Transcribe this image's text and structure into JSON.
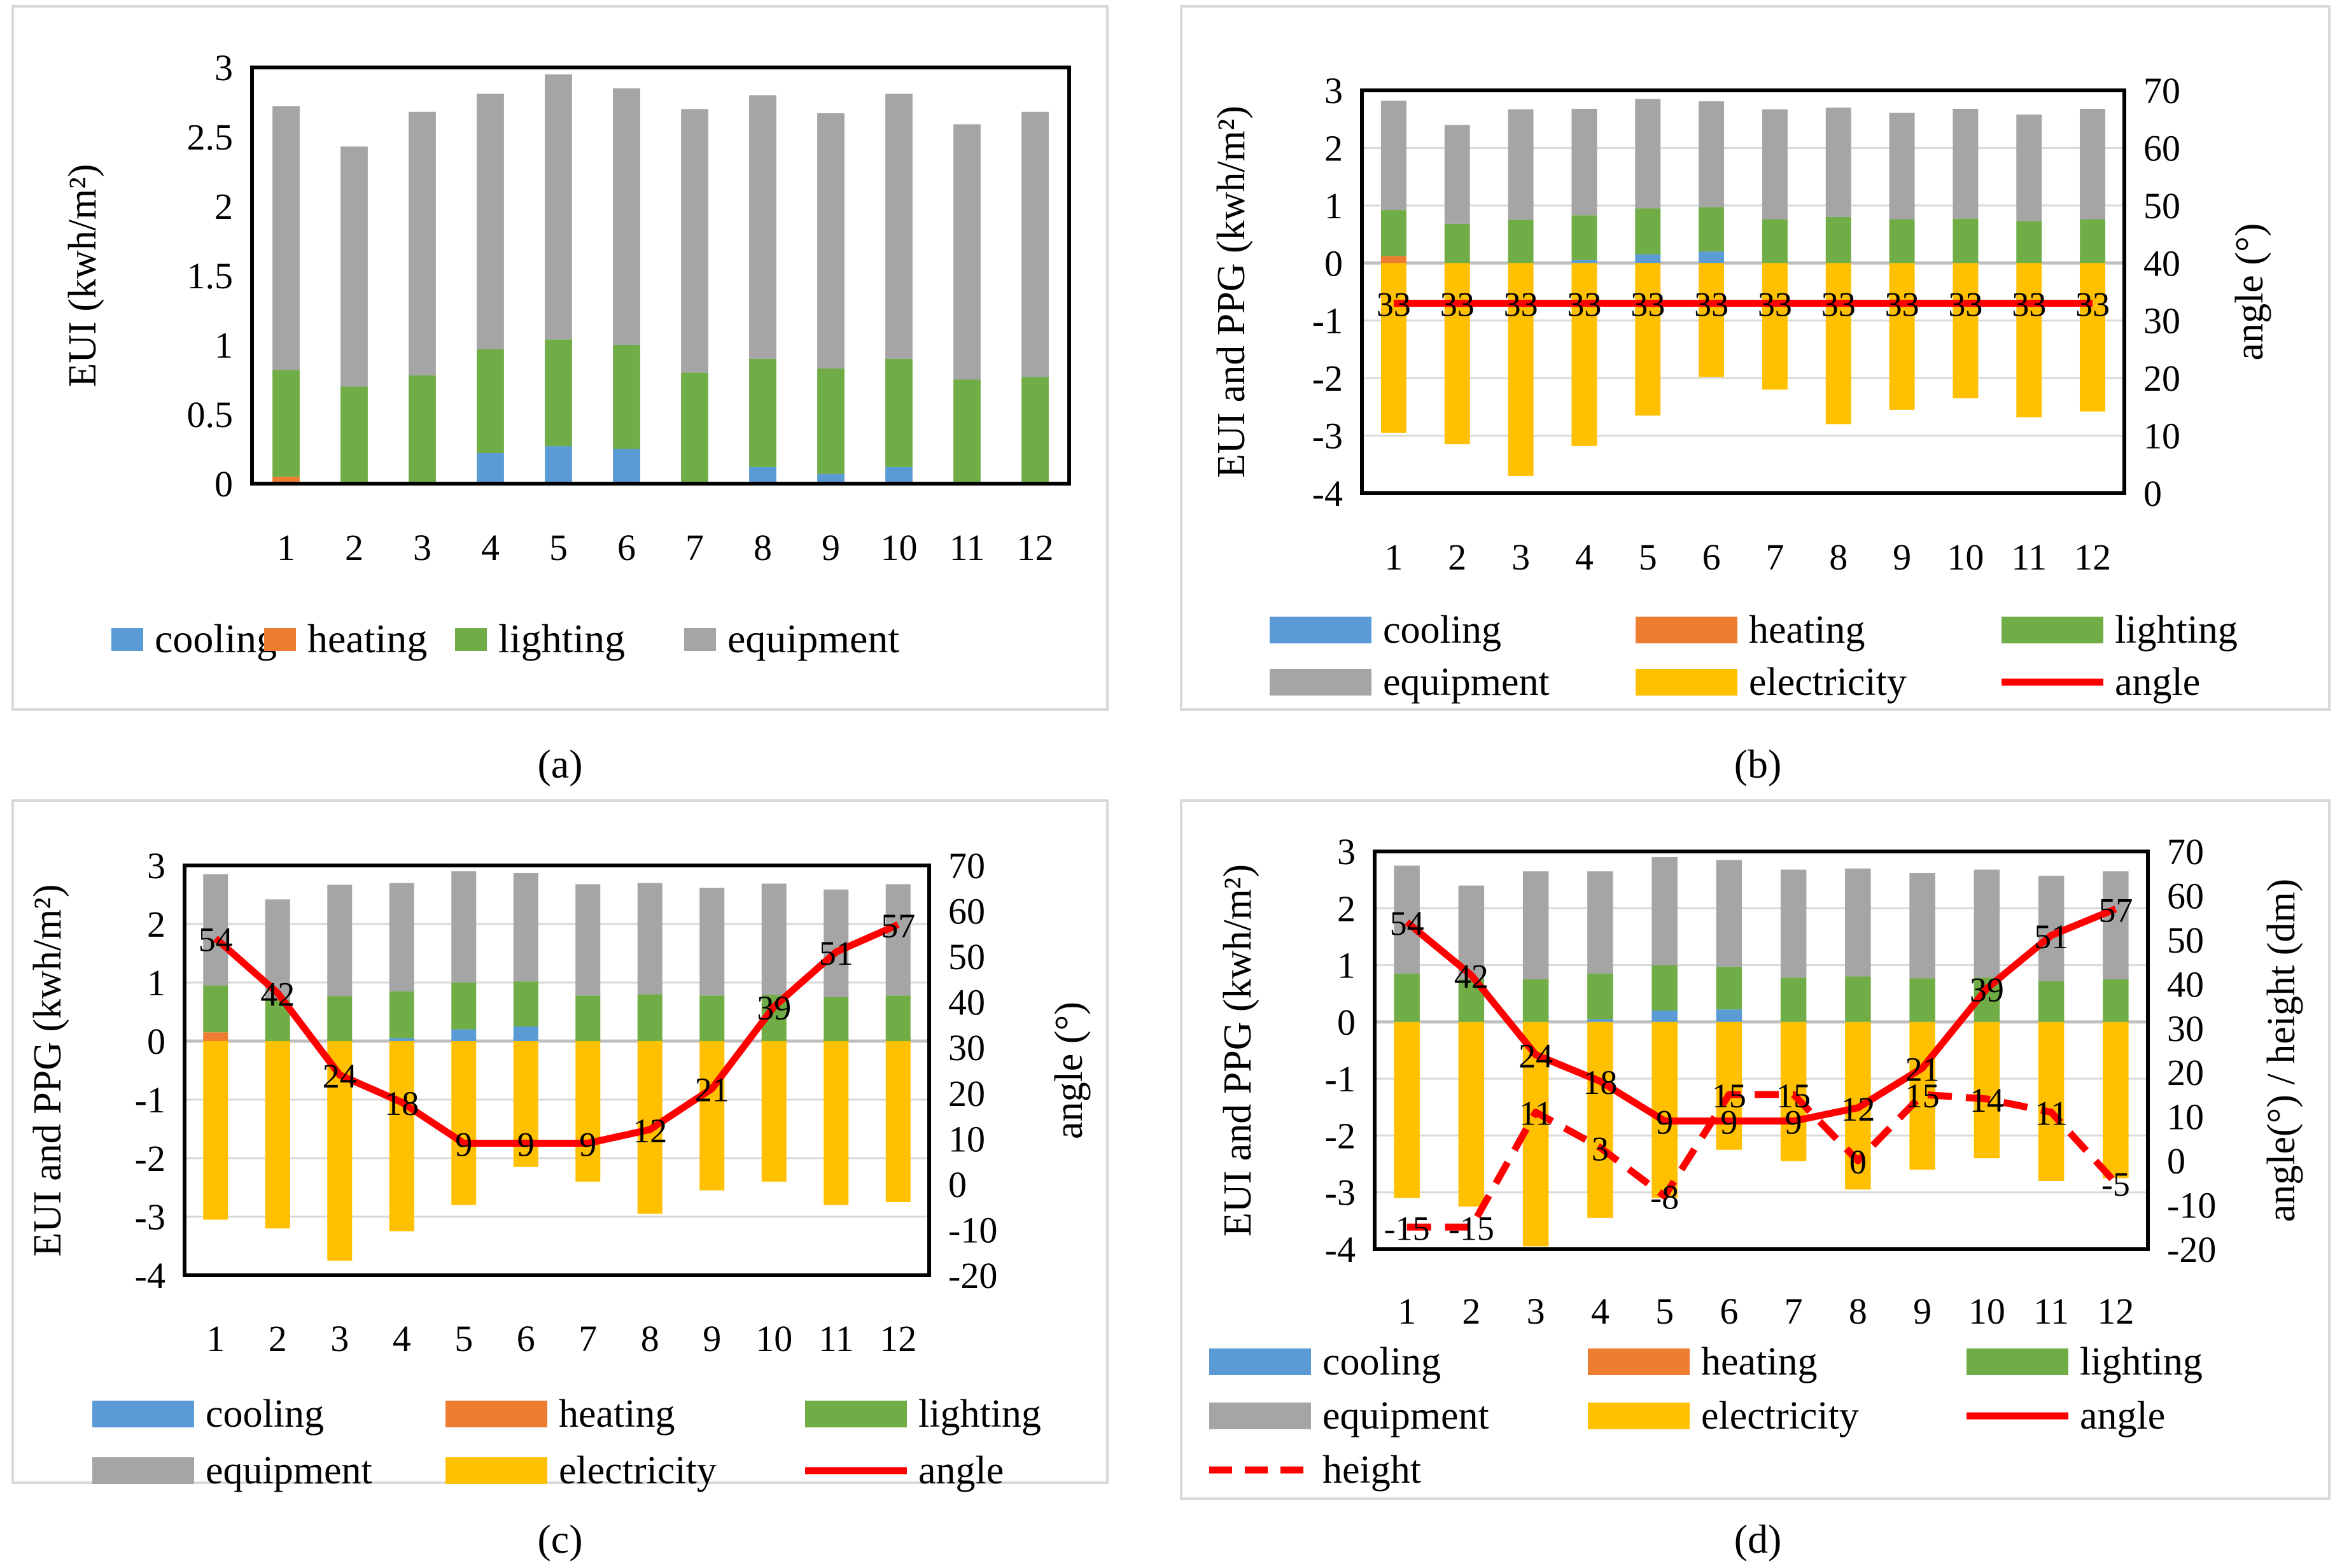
{
  "colors": {
    "cooling": "#5B9BD5",
    "heating": "#ED7D31",
    "lighting": "#70AD47",
    "equipment": "#A5A5A5",
    "electricity": "#FFC000",
    "angle": "#FF0000",
    "height": "#FF0000",
    "gridline": "#D9D9D9",
    "zeroline": "#BFBFBF",
    "frame": "#000000",
    "panel_border": "#D9D9D9"
  },
  "captions": [
    "(a)",
    "(b)",
    "(c)",
    "(d)"
  ],
  "chart_data": [
    {
      "id": "a",
      "type": "bar",
      "stacked": true,
      "categories": [
        "1",
        "2",
        "3",
        "4",
        "5",
        "6",
        "7",
        "8",
        "9",
        "10",
        "11",
        "12"
      ],
      "ylabel": "EUI (kwh/m²)",
      "ylim": [
        0,
        3
      ],
      "yticks": [
        "0",
        "0.5",
        "1",
        "1.5",
        "2",
        "2.5",
        "3"
      ],
      "grid": false,
      "legend_position": "bottom",
      "series": [
        {
          "name": "cooling",
          "values": [
            0,
            0,
            0,
            0.22,
            0.27,
            0.25,
            0,
            0.12,
            0.07,
            0.12,
            0,
            0
          ]
        },
        {
          "name": "heating",
          "values": [
            0.05,
            0,
            0,
            0,
            0,
            0,
            0,
            0,
            0,
            0,
            0,
            0
          ]
        },
        {
          "name": "lighting",
          "values": [
            0.77,
            0.7,
            0.78,
            0.75,
            0.77,
            0.75,
            0.8,
            0.78,
            0.76,
            0.78,
            0.75,
            0.77
          ]
        },
        {
          "name": "equipment",
          "values": [
            1.9,
            1.73,
            1.9,
            1.84,
            1.91,
            1.85,
            1.9,
            1.9,
            1.84,
            1.91,
            1.84,
            1.91
          ]
        }
      ]
    },
    {
      "id": "b",
      "type": "bar",
      "stacked": true,
      "categories": [
        "1",
        "2",
        "3",
        "4",
        "5",
        "6",
        "7",
        "8",
        "9",
        "10",
        "11",
        "12"
      ],
      "ylabel": "EUI and PPG   (kwh/m²)",
      "ylim": [
        -4,
        3
      ],
      "yticks": [
        "-4",
        "-3",
        "-2",
        "-1",
        "0",
        "1",
        "2",
        "3"
      ],
      "y2label": "angle (°)",
      "y2lim": [
        0,
        70
      ],
      "y2ticks": [
        "0",
        "10",
        "20",
        "30",
        "40",
        "50",
        "60",
        "70"
      ],
      "grid": true,
      "legend_position": "bottom",
      "series": [
        {
          "name": "cooling",
          "values": [
            0,
            0,
            0,
            0.05,
            0.15,
            0.2,
            0,
            0,
            0,
            0,
            0,
            0
          ]
        },
        {
          "name": "heating",
          "values": [
            0.12,
            0,
            0,
            0,
            0,
            0,
            0,
            0,
            0,
            0,
            0,
            0
          ]
        },
        {
          "name": "lighting",
          "values": [
            0.8,
            0.68,
            0.75,
            0.78,
            0.8,
            0.77,
            0.76,
            0.8,
            0.76,
            0.77,
            0.73,
            0.76
          ]
        },
        {
          "name": "equipment",
          "values": [
            1.9,
            1.72,
            1.92,
            1.85,
            1.9,
            1.84,
            1.91,
            1.9,
            1.85,
            1.91,
            1.85,
            1.92
          ]
        },
        {
          "name": "electricity",
          "values": [
            -2.95,
            -3.15,
            -3.7,
            -3.18,
            -2.65,
            -1.98,
            -2.2,
            -2.8,
            -2.55,
            -2.35,
            -2.68,
            -2.58
          ]
        }
      ],
      "lines": [
        {
          "name": "angle",
          "axis": "y2",
          "dashed": false,
          "values": [
            33,
            33,
            33,
            33,
            33,
            33,
            33,
            33,
            33,
            33,
            33,
            33
          ],
          "labels": [
            "33",
            "33",
            "33",
            "33",
            "33",
            "33",
            "33",
            "33",
            "33",
            "33",
            "33",
            "33"
          ]
        }
      ]
    },
    {
      "id": "c",
      "type": "bar",
      "stacked": true,
      "categories": [
        "1",
        "2",
        "3",
        "4",
        "5",
        "6",
        "7",
        "8",
        "9",
        "10",
        "11",
        "12"
      ],
      "ylabel": "EUI and PPG   (kwh/m²)",
      "ylim": [
        -4,
        3
      ],
      "yticks": [
        "-4",
        "-3",
        "-2",
        "-1",
        "0",
        "1",
        "2",
        "3"
      ],
      "y2label": "angle (°)",
      "y2lim": [
        -20,
        70
      ],
      "y2ticks": [
        "-20",
        "-10",
        "0",
        "10",
        "20",
        "30",
        "40",
        "50",
        "60",
        "70"
      ],
      "grid": true,
      "legend_position": "bottom",
      "series": [
        {
          "name": "cooling",
          "values": [
            0,
            0,
            0,
            0.05,
            0.2,
            0.25,
            0,
            0,
            0,
            0,
            0,
            0
          ]
        },
        {
          "name": "heating",
          "values": [
            0.15,
            0,
            0,
            0,
            0,
            0,
            0,
            0,
            0,
            0,
            0,
            0
          ]
        },
        {
          "name": "lighting",
          "values": [
            0.8,
            0.7,
            0.77,
            0.8,
            0.8,
            0.77,
            0.78,
            0.8,
            0.78,
            0.79,
            0.75,
            0.78
          ]
        },
        {
          "name": "equipment",
          "values": [
            1.9,
            1.72,
            1.9,
            1.85,
            1.9,
            1.85,
            1.9,
            1.9,
            1.84,
            1.9,
            1.84,
            1.9
          ]
        },
        {
          "name": "electricity",
          "values": [
            -3.05,
            -3.2,
            -3.75,
            -3.25,
            -2.8,
            -2.15,
            -2.4,
            -2.95,
            -2.55,
            -2.4,
            -2.8,
            -2.75
          ]
        }
      ],
      "lines": [
        {
          "name": "angle",
          "axis": "y2",
          "dashed": false,
          "values": [
            54,
            42,
            24,
            18,
            9,
            9,
            9,
            12,
            21,
            39,
            51,
            57
          ],
          "labels": [
            "54",
            "42",
            "24",
            "18",
            "9",
            "9",
            "9",
            "12",
            "21",
            "39",
            "51",
            "57"
          ]
        }
      ]
    },
    {
      "id": "d",
      "type": "bar",
      "stacked": true,
      "categories": [
        "1",
        "2",
        "3",
        "4",
        "5",
        "6",
        "7",
        "8",
        "9",
        "10",
        "11",
        "12"
      ],
      "ylabel": "EUI and PPG   (kwh/m²)",
      "ylim": [
        -4,
        3
      ],
      "yticks": [
        "-4",
        "-3",
        "-2",
        "-1",
        "0",
        "1",
        "2",
        "3"
      ],
      "y2label": "angle(°) / height (dm)",
      "y2lim": [
        -20,
        70
      ],
      "y2ticks": [
        "-20",
        "-10",
        "0",
        "10",
        "20",
        "30",
        "40",
        "50",
        "60",
        "70"
      ],
      "grid": true,
      "legend_position": "bottom",
      "series": [
        {
          "name": "cooling",
          "values": [
            0,
            0,
            0,
            0.05,
            0.2,
            0.22,
            0,
            0,
            0,
            0,
            0,
            0
          ]
        },
        {
          "name": "heating",
          "values": [
            0,
            0,
            0,
            0,
            0,
            0,
            0,
            0,
            0,
            0,
            0,
            0
          ]
        },
        {
          "name": "lighting",
          "values": [
            0.85,
            0.75,
            0.75,
            0.8,
            0.8,
            0.75,
            0.78,
            0.8,
            0.77,
            0.78,
            0.72,
            0.75
          ]
        },
        {
          "name": "equipment",
          "values": [
            1.9,
            1.65,
            1.9,
            1.8,
            1.9,
            1.88,
            1.9,
            1.9,
            1.85,
            1.9,
            1.85,
            1.9
          ]
        },
        {
          "name": "electricity",
          "values": [
            -3.1,
            -3.25,
            -3.95,
            -3.45,
            -3.1,
            -2.25,
            -2.45,
            -2.95,
            -2.6,
            -2.4,
            -2.8,
            -2.75
          ]
        }
      ],
      "lines": [
        {
          "name": "angle",
          "axis": "y2",
          "dashed": false,
          "values": [
            54,
            42,
            24,
            18,
            9,
            9,
            9,
            12,
            21,
            39,
            51,
            57
          ],
          "labels": [
            "54",
            "42",
            "24",
            "18",
            "9",
            "9",
            "9",
            "12",
            "21",
            "39",
            "51",
            "57"
          ]
        },
        {
          "name": "height",
          "axis": "y2",
          "dashed": true,
          "values": [
            -15,
            -15,
            11,
            3,
            -8,
            15,
            15,
            0,
            15,
            14,
            11,
            -5
          ],
          "labels": [
            "-15",
            "-15",
            "11",
            "3",
            "-8",
            "15",
            "15",
            "0",
            "15",
            "14",
            "11",
            "-5"
          ]
        }
      ]
    }
  ],
  "legends": {
    "a": [
      {
        "key": "cooling",
        "label": "cooling",
        "kind": "box"
      },
      {
        "key": "heating",
        "label": "heating",
        "kind": "box"
      },
      {
        "key": "lighting",
        "label": "lighting",
        "kind": "box"
      },
      {
        "key": "equipment",
        "label": "equipment",
        "kind": "box"
      }
    ],
    "b": [
      {
        "key": "cooling",
        "label": "cooling",
        "kind": "box"
      },
      {
        "key": "heating",
        "label": "heating",
        "kind": "box"
      },
      {
        "key": "lighting",
        "label": "lighting",
        "kind": "box"
      },
      {
        "key": "equipment",
        "label": "equipment",
        "kind": "box"
      },
      {
        "key": "electricity",
        "label": "electricity",
        "kind": "box"
      },
      {
        "key": "angle",
        "label": "angle",
        "kind": "line"
      }
    ],
    "c": [
      {
        "key": "cooling",
        "label": "cooling",
        "kind": "box"
      },
      {
        "key": "heating",
        "label": "heating",
        "kind": "box"
      },
      {
        "key": "lighting",
        "label": "lighting",
        "kind": "box"
      },
      {
        "key": "equipment",
        "label": "equipment",
        "kind": "box"
      },
      {
        "key": "electricity",
        "label": "electricity",
        "kind": "box"
      },
      {
        "key": "angle",
        "label": "angle",
        "kind": "line"
      }
    ],
    "d": [
      {
        "key": "cooling",
        "label": "cooling",
        "kind": "box"
      },
      {
        "key": "heating",
        "label": "heating",
        "kind": "box"
      },
      {
        "key": "lighting",
        "label": "lighting",
        "kind": "box"
      },
      {
        "key": "equipment",
        "label": "equipment",
        "kind": "box"
      },
      {
        "key": "electricity",
        "label": "electricity",
        "kind": "box"
      },
      {
        "key": "angle",
        "label": "angle",
        "kind": "line"
      },
      {
        "key": "height",
        "label": "height",
        "kind": "dash"
      }
    ]
  }
}
